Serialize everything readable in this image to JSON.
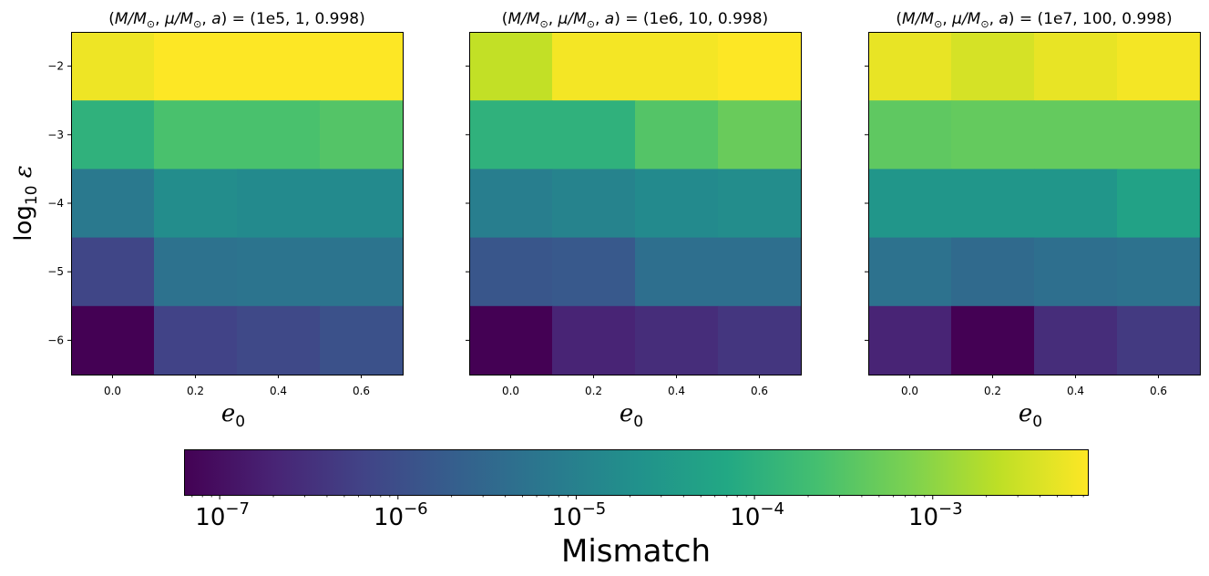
{
  "chart_data": [
    {
      "type": "heatmap",
      "title": "(M/M⊙, μ/M⊙, a) = (1e5, 1, 0.998)",
      "title_parts": {
        "open": "(",
        "m_ratio": "M/M",
        "odot": "⊙",
        "mu_ratio": "μ/M",
        "a": "a",
        "eq": ") = (",
        "values": "1e5, 1, 0.998",
        "close": ")"
      },
      "xlabel": "e₀",
      "xlabel_parts": {
        "base": "e",
        "sub": "0"
      },
      "ylabel": "log₁₀ ε",
      "ylabel_parts": {
        "base": "log",
        "sub": "10",
        "var": "ε"
      },
      "x": [
        0.0,
        0.2,
        0.4,
        0.6
      ],
      "y": [
        -2,
        -3,
        -4,
        -5,
        -6
      ],
      "xlim": [
        -0.1,
        0.7
      ],
      "ylim": [
        -6.5,
        -1.5
      ],
      "x_ticks": [
        "0.0",
        "0.2",
        "0.4",
        "0.6"
      ],
      "y_ticks": [
        "−2",
        "−3",
        "−4",
        "−5",
        "−6"
      ],
      "log10_mismatch": [
        [
          -2.25,
          -2.13,
          -2.13,
          -2.13
        ],
        [
          -3.95,
          -3.6,
          -3.6,
          -3.5
        ],
        [
          -5.15,
          -4.75,
          -4.8,
          -4.8
        ],
        [
          -6.15,
          -5.3,
          -5.25,
          -5.25
        ],
        [
          -7.2,
          -6.2,
          -6.1,
          -5.95
        ]
      ],
      "row_edges_log10_eps": [
        -1.5,
        -2.5,
        -3.5,
        -4.5,
        -5.5,
        -6.5
      ],
      "col_edges_e0": [
        -0.1,
        0.1,
        0.3,
        0.5,
        0.7
      ]
    },
    {
      "type": "heatmap",
      "title": "(M/M⊙, μ/M⊙, a) = (1e6, 10, 0.998)",
      "title_parts": {
        "open": "(",
        "m_ratio": "M/M",
        "odot": "⊙",
        "mu_ratio": "μ/M",
        "a": "a",
        "eq": ") = (",
        "values": "1e6, 10, 0.998",
        "close": ")"
      },
      "xlabel": "e₀",
      "xlabel_parts": {
        "base": "e",
        "sub": "0"
      },
      "x": [
        0.0,
        0.2,
        0.4,
        0.6
      ],
      "y": [
        -2,
        -3,
        -4,
        -5,
        -6
      ],
      "xlim": [
        -0.1,
        0.7
      ],
      "ylim": [
        -6.5,
        -1.5
      ],
      "x_ticks": [
        "0.0",
        "0.2",
        "0.4",
        "0.6"
      ],
      "log10_mismatch": [
        [
          -2.6,
          -2.2,
          -2.2,
          -2.1
        ],
        [
          -3.95,
          -3.95,
          -3.5,
          -3.3
        ],
        [
          -5.05,
          -4.95,
          -4.8,
          -4.75
        ],
        [
          -5.85,
          -5.8,
          -5.35,
          -5.35
        ],
        [
          -7.2,
          -6.7,
          -6.55,
          -6.4
        ]
      ],
      "row_edges_log10_eps": [
        -1.5,
        -2.5,
        -3.5,
        -4.5,
        -5.5,
        -6.5
      ],
      "col_edges_e0": [
        -0.1,
        0.1,
        0.3,
        0.5,
        0.7
      ]
    },
    {
      "type": "heatmap",
      "title": "(M/M⊙, μ/M⊙, a) = (1e7, 100, 0.998)",
      "title_parts": {
        "open": "(",
        "m_ratio": "M/M",
        "odot": "⊙",
        "mu_ratio": "μ/M",
        "a": "a",
        "eq": ") = (",
        "values": "1e7, 100, 0.998",
        "close": ")"
      },
      "xlabel": "e₀",
      "xlabel_parts": {
        "base": "e",
        "sub": "0"
      },
      "x": [
        0.0,
        0.2,
        0.4,
        0.6
      ],
      "y": [
        -2,
        -3,
        -4,
        -5,
        -6
      ],
      "xlim": [
        -0.1,
        0.7
      ],
      "ylim": [
        -6.5,
        -1.5
      ],
      "x_ticks": [
        "0.0",
        "0.2",
        "0.4",
        "0.6"
      ],
      "log10_mismatch": [
        [
          -2.3,
          -2.45,
          -2.3,
          -2.2
        ],
        [
          -3.4,
          -3.35,
          -3.35,
          -3.35
        ],
        [
          -4.55,
          -4.55,
          -4.55,
          -4.3
        ],
        [
          -5.3,
          -5.45,
          -5.35,
          -5.3
        ],
        [
          -6.7,
          -7.2,
          -6.55,
          -6.35
        ]
      ],
      "row_edges_log10_eps": [
        -1.5,
        -2.5,
        -3.5,
        -4.5,
        -5.5,
        -6.5
      ],
      "col_edges_e0": [
        -0.1,
        0.1,
        0.3,
        0.5,
        0.7
      ]
    }
  ],
  "colorbar": {
    "label": "Mismatch",
    "scale": "log",
    "colormap": "viridis",
    "range_log10": [
      -7.2,
      -2.13
    ],
    "major_ticks_log10": [
      -7,
      -6,
      -5,
      -4,
      -3
    ],
    "tick_labels": [
      {
        "base": "10",
        "exp": "−7"
      },
      {
        "base": "10",
        "exp": "−6"
      },
      {
        "base": "10",
        "exp": "−5"
      },
      {
        "base": "10",
        "exp": "−4"
      },
      {
        "base": "10",
        "exp": "−3"
      }
    ]
  },
  "viridis": [
    "#440154",
    "#482475",
    "#414487",
    "#355f8d",
    "#2a788e",
    "#21918c",
    "#22a884",
    "#44bf70",
    "#7ad151",
    "#bddf26",
    "#fde725"
  ]
}
